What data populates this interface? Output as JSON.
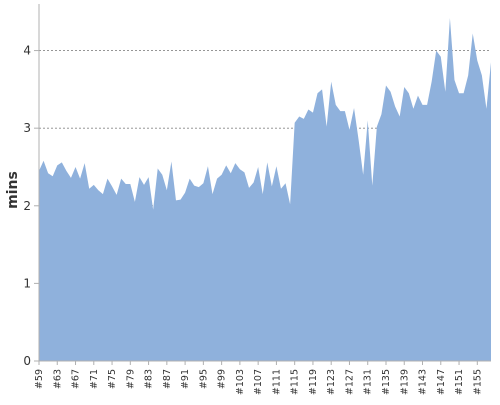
{
  "chart_data": {
    "type": "area",
    "xlabel": "",
    "ylabel": "mins",
    "ylim": [
      0,
      4.6
    ],
    "yticks": [
      0,
      1,
      2,
      3,
      4
    ],
    "ytick_labels": [
      "0",
      "1",
      "2",
      "3",
      "4"
    ],
    "grid": true,
    "grid_style": "dotted",
    "area_color": "#8fb1dc",
    "gridline_color": "#888888",
    "axis_color": "#b0b0b0",
    "xtick_labels": [
      "#59",
      "#63",
      "#67",
      "#71",
      "#75",
      "#79",
      "#83",
      "#87",
      "#91",
      "#95",
      "#99",
      "#103",
      "#107",
      "#111",
      "#115",
      "#119",
      "#123",
      "#127",
      "#131",
      "#135",
      "#139",
      "#143",
      "#147",
      "#151",
      "#155"
    ],
    "x": [
      59,
      60,
      61,
      62,
      63,
      64,
      65,
      66,
      67,
      68,
      69,
      70,
      71,
      72,
      73,
      74,
      75,
      76,
      77,
      78,
      79,
      80,
      81,
      82,
      83,
      84,
      85,
      86,
      87,
      88,
      89,
      90,
      91,
      92,
      93,
      94,
      95,
      96,
      97,
      98,
      99,
      100,
      101,
      102,
      103,
      104,
      105,
      106,
      107,
      108,
      109,
      110,
      111,
      112,
      113,
      114,
      115,
      116,
      117,
      118,
      119,
      120,
      121,
      122,
      123,
      124,
      125,
      126,
      127,
      128,
      129,
      130,
      131,
      132,
      133,
      134,
      135,
      136,
      137,
      138,
      139,
      140,
      141,
      142,
      143,
      144,
      145,
      146,
      147,
      148,
      149,
      150,
      151,
      152,
      153,
      154,
      155,
      156,
      157,
      158
    ],
    "values": [
      2.45,
      2.58,
      2.42,
      2.38,
      2.52,
      2.56,
      2.45,
      2.36,
      2.5,
      2.35,
      2.55,
      2.22,
      2.27,
      2.2,
      2.15,
      2.35,
      2.25,
      2.14,
      2.35,
      2.28,
      2.28,
      2.05,
      2.37,
      2.27,
      2.37,
      1.95,
      2.48,
      2.4,
      2.2,
      2.57,
      2.07,
      2.08,
      2.17,
      2.35,
      2.26,
      2.24,
      2.29,
      2.51,
      2.15,
      2.35,
      2.4,
      2.52,
      2.42,
      2.55,
      2.47,
      2.43,
      2.23,
      2.3,
      2.5,
      2.15,
      2.56,
      2.25,
      2.51,
      2.22,
      2.29,
      2.02,
      3.07,
      3.15,
      3.12,
      3.24,
      3.2,
      3.45,
      3.5,
      3.02,
      3.6,
      3.3,
      3.22,
      3.22,
      2.98,
      3.26,
      2.85,
      2.4,
      3.1,
      2.26,
      3.02,
      3.18,
      3.55,
      3.47,
      3.28,
      3.15,
      3.53,
      3.45,
      3.25,
      3.42,
      3.3,
      3.3,
      3.6,
      4.0,
      3.92,
      3.47,
      4.42,
      3.62,
      3.45,
      3.45,
      3.68,
      4.22,
      3.87,
      3.68,
      3.25,
      3.85
    ]
  }
}
